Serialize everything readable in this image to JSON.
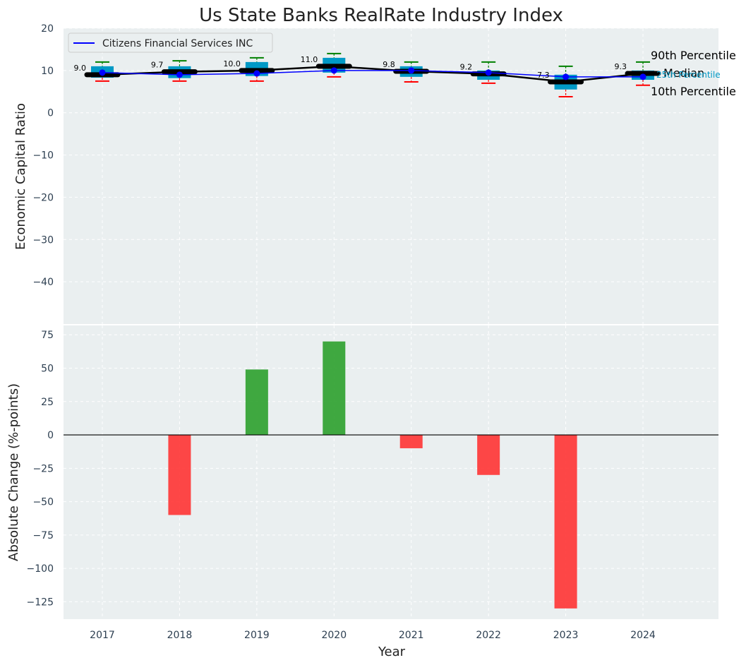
{
  "chart_data": {
    "title": "Us State Banks RealRate Industry Index",
    "xlabel": "Year",
    "years": [
      "2017",
      "2018",
      "2019",
      "2020",
      "2021",
      "2022",
      "2023",
      "2024"
    ],
    "colors": {
      "box": "#0099c6",
      "company_line": "#0000ff",
      "median_line": "#000000",
      "upper_whisker": "#008000",
      "lower_whisker": "#ff0000",
      "positive_bar": "#2ca02c",
      "negative_bar": "#ff3333",
      "panel_bg": "#eaeff0"
    },
    "top_panel": {
      "type": "box",
      "ylabel": "Economic Capital Ratio",
      "ylim": [
        -50,
        20
      ],
      "yticks": [
        20,
        10,
        0,
        -10,
        -20,
        -30,
        -40
      ],
      "legend_label": "Citizens Financial Services INC",
      "company_values": [
        9.5,
        9.0,
        9.3,
        10.0,
        10.0,
        9.5,
        8.5,
        8.5
      ],
      "median": [
        9.0,
        9.7,
        10.0,
        11.0,
        9.8,
        9.2,
        7.3,
        9.3
      ],
      "median_labels": [
        "9.0",
        "9.7",
        "10.0",
        "11.0",
        "9.8",
        "9.2",
        "7.3",
        "9.3"
      ],
      "q1": [
        8.3,
        8.2,
        8.7,
        9.5,
        8.5,
        7.8,
        5.5,
        7.8
      ],
      "q3": [
        11.0,
        11.0,
        12.0,
        13.0,
        11.0,
        10.0,
        9.0,
        10.0
      ],
      "p10": [
        7.5,
        7.5,
        7.5,
        8.5,
        7.3,
        7.0,
        3.8,
        6.5
      ],
      "p90": [
        12.0,
        12.3,
        13.0,
        14.0,
        12.0,
        12.0,
        11.0,
        12.0
      ],
      "annotations": {
        "p90": "90th Percentile",
        "median": "Median",
        "p10": "10th Percentile",
        "p25": "25th Percentile"
      }
    },
    "bottom_panel": {
      "type": "bar",
      "ylabel": "Absolute Change (%-points)",
      "ylim": [
        -138,
        82
      ],
      "yticks": [
        75,
        50,
        25,
        0,
        -25,
        -50,
        -75,
        -100,
        -125
      ],
      "values": [
        0,
        -60,
        49,
        70,
        -10,
        -30,
        -130,
        0
      ]
    }
  }
}
